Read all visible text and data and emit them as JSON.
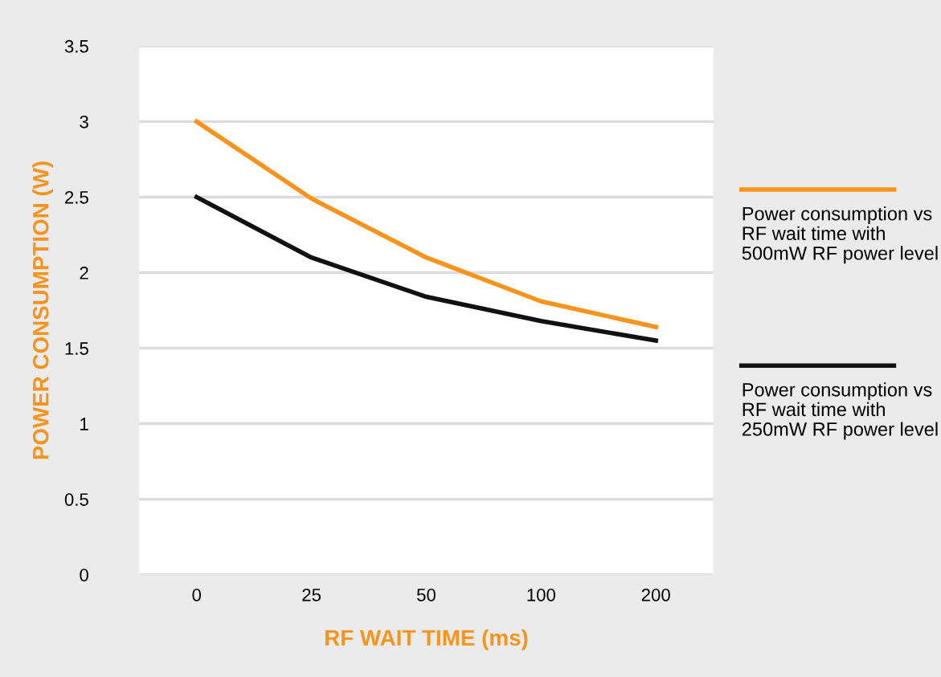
{
  "chart_data": {
    "type": "line",
    "xlabel": "RF WAIT TIME (ms)",
    "ylabel": "POWER CONSUMPTION (W)",
    "categories": [
      "0",
      "25",
      "50",
      "100",
      "200"
    ],
    "series": [
      {
        "name": "Power consumption vs RF wait time with 500mW RF power level",
        "color": "#f7941d",
        "values": [
          3.0,
          2.49,
          2.1,
          1.81,
          1.64
        ]
      },
      {
        "name": "Power consumption vs RF wait time with 250mW RF power level",
        "color": "#111111",
        "values": [
          2.5,
          2.1,
          1.84,
          1.68,
          1.55
        ]
      }
    ],
    "ylim": [
      0,
      3.5
    ],
    "yticks": [
      0,
      0.5,
      1,
      1.5,
      2,
      2.5,
      3,
      3.5
    ],
    "grid": "y",
    "legend": "right",
    "marker": "none",
    "line_style": "solid"
  }
}
